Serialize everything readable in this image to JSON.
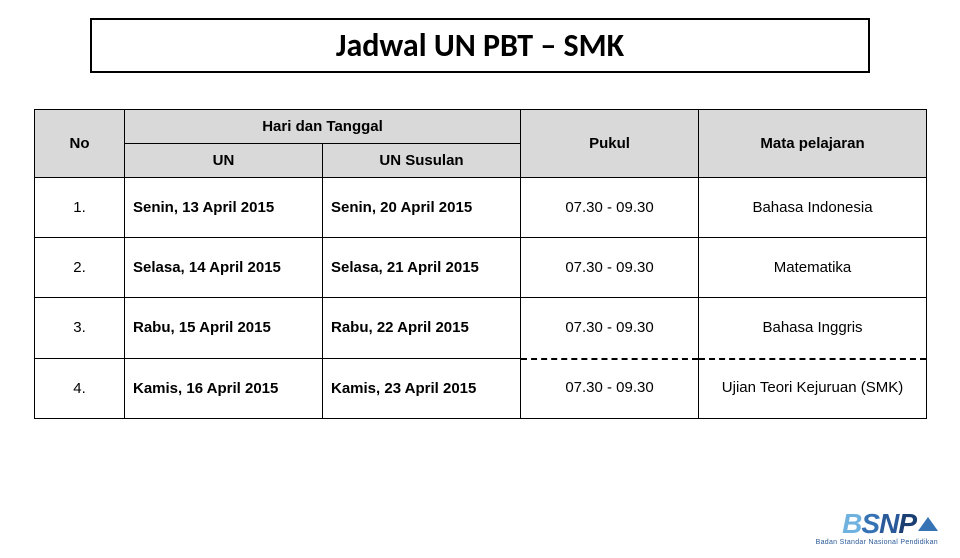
{
  "title": "Jadwal UN PBT – SMK",
  "headers": {
    "no": "No",
    "hari_tanggal": "Hari dan Tanggal",
    "un": "UN",
    "un_susulan": "UN Susulan",
    "pukul": "Pukul",
    "mata_pelajaran": "Mata pelajaran"
  },
  "rows": [
    {
      "no": "1.",
      "un": "Senin, 13 April 2015",
      "susulan": "Senin, 20 April 2015",
      "pukul": "07.30  - 09.30",
      "mapel": "Bahasa Indonesia"
    },
    {
      "no": "2.",
      "un": "Selasa, 14 April 2015",
      "susulan": "Selasa, 21 April 2015",
      "pukul": "07.30  - 09.30",
      "mapel": "Matematika"
    },
    {
      "no": "3.",
      "un": "Rabu, 15 April 2015",
      "susulan": "Rabu, 22 April 2015",
      "pukul": "07.30  - 09.30",
      "mapel": "Bahasa Inggris"
    },
    {
      "no": "4.",
      "un": "Kamis, 16 April 2015",
      "susulan": "Kamis, 23 April 2015",
      "pukul": "07.30  - 09.30",
      "mapel": "Ujian Teori Kejuruan (SMK)"
    }
  ],
  "logo": {
    "text": "BSNP",
    "subtitle": "Badan Standar Nasional Pendidikan",
    "colors": {
      "b": "#6fb2e0",
      "s": "#3673b5",
      "n": "#2a5a99",
      "p": "#1c3f73"
    }
  },
  "style": {
    "header_bg": "#d9d9d9",
    "border_color": "#000000",
    "title_fontsize": 32,
    "cell_fontsize": 15
  }
}
